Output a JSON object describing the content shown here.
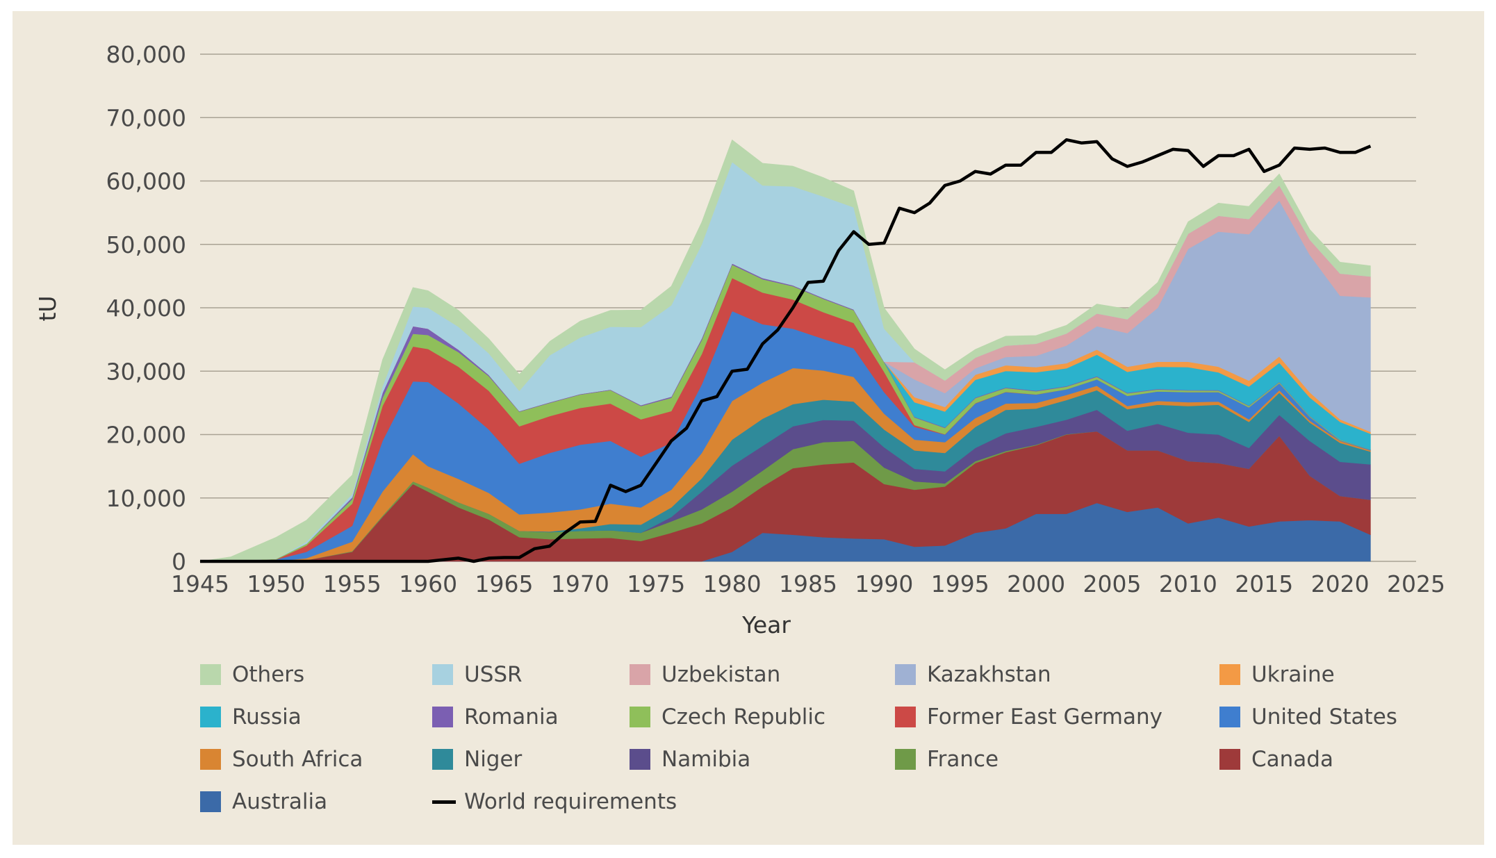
{
  "chart_data": {
    "type": "area",
    "stacked": true,
    "title": "",
    "xlabel": "Year",
    "ylabel": "tU",
    "xlim": [
      1945,
      2025
    ],
    "ylim": [
      0,
      80000
    ],
    "xticks": [
      1945,
      1950,
      1955,
      1960,
      1965,
      1970,
      1975,
      1980,
      1985,
      1990,
      1995,
      2000,
      2005,
      2010,
      2015,
      2020,
      2025
    ],
    "yticks": [
      0,
      10000,
      20000,
      30000,
      40000,
      50000,
      60000,
      70000,
      80000
    ],
    "ytick_labels": [
      "0",
      "10,000",
      "20,000",
      "30,000",
      "40,000",
      "50,000",
      "60,000",
      "70,000",
      "80,000"
    ],
    "grid": true,
    "legend_position": "bottom",
    "x": [
      1945,
      1947,
      1950,
      1952,
      1955,
      1957,
      1959,
      1960,
      1962,
      1964,
      1966,
      1968,
      1970,
      1972,
      1974,
      1976,
      1978,
      1980,
      1982,
      1984,
      1986,
      1988,
      1990,
      1992,
      1994,
      1996,
      1998,
      2000,
      2002,
      2004,
      2006,
      2008,
      2010,
      2012,
      2014,
      2016,
      2018,
      2020,
      2022
    ],
    "series": [
      {
        "name": "Australia",
        "color": "#3b6aa8",
        "values": [
          0,
          0,
          0,
          0,
          0,
          0,
          0,
          0,
          0,
          0,
          0,
          0,
          0,
          0,
          0,
          0,
          0,
          1500,
          4500,
          4200,
          3800,
          3600,
          3500,
          2300,
          2500,
          4500,
          5200,
          7500,
          7500,
          9200,
          7800,
          8500,
          6000,
          6900,
          5500,
          6300,
          6500,
          6300,
          4200
        ]
      },
      {
        "name": "Canada",
        "color": "#9e3a3a",
        "values": [
          0,
          0,
          0,
          200,
          1500,
          7000,
          12200,
          11000,
          8500,
          6600,
          3800,
          3500,
          3600,
          3700,
          3200,
          4500,
          6000,
          7000,
          7300,
          10500,
          11500,
          12000,
          8700,
          9000,
          9300,
          11000,
          12000,
          10800,
          12500,
          11300,
          9700,
          9000,
          9800,
          8600,
          9100,
          13500,
          7000,
          4000,
          5500
        ]
      },
      {
        "name": "France",
        "color": "#6f9a48",
        "values": [
          0,
          0,
          0,
          0,
          100,
          200,
          400,
          600,
          800,
          900,
          1000,
          1100,
          1200,
          1200,
          1300,
          1800,
          2200,
          2500,
          2500,
          3000,
          3500,
          3400,
          2600,
          1300,
          500,
          300,
          200,
          100,
          50,
          0,
          0,
          0,
          0,
          0,
          0,
          0,
          0,
          0,
          0
        ]
      },
      {
        "name": "Namibia",
        "color": "#5b4d8c",
        "values": [
          0,
          0,
          0,
          0,
          0,
          0,
          0,
          0,
          0,
          0,
          0,
          0,
          0,
          0,
          0,
          700,
          2800,
          4100,
          3900,
          3600,
          3500,
          3200,
          3200,
          2000,
          1900,
          2100,
          2800,
          2800,
          2300,
          3400,
          3100,
          4200,
          4500,
          4500,
          3300,
          3300,
          5500,
          5400,
          5600
        ]
      },
      {
        "name": "Niger",
        "color": "#2f8a9a",
        "values": [
          0,
          0,
          0,
          0,
          0,
          0,
          0,
          0,
          0,
          0,
          0,
          100,
          400,
          1000,
          1300,
          1500,
          2100,
          4100,
          4300,
          3500,
          3200,
          3000,
          2800,
          2900,
          2900,
          3300,
          3700,
          2900,
          3100,
          3100,
          3400,
          3000,
          4200,
          4700,
          4100,
          3500,
          2900,
          3000,
          2000
        ]
      },
      {
        "name": "South Africa",
        "color": "#d98532",
        "values": [
          0,
          0,
          0,
          300,
          1500,
          3800,
          4300,
          3400,
          3700,
          3300,
          2600,
          3000,
          3000,
          3200,
          2700,
          2800,
          4000,
          6100,
          5700,
          5700,
          4600,
          3900,
          2500,
          1700,
          1700,
          1400,
          1000,
          900,
          800,
          700,
          500,
          600,
          600,
          500,
          400,
          400,
          300,
          300,
          200
        ]
      },
      {
        "name": "United States",
        "color": "#3f7ecf",
        "values": [
          0,
          100,
          300,
          1000,
          2500,
          8000,
          11500,
          13300,
          11900,
          10000,
          8000,
          9400,
          10200,
          9900,
          8000,
          7400,
          10800,
          14200,
          9200,
          6200,
          5000,
          4500,
          3400,
          2000,
          1200,
          2300,
          1800,
          1300,
          900,
          1000,
          1600,
          1500,
          1600,
          1500,
          1900,
          1100,
          600,
          100,
          100
        ]
      },
      {
        "name": "Former East Germany",
        "color": "#cc4946",
        "values": [
          0,
          0,
          0,
          1000,
          3500,
          5500,
          5500,
          5200,
          5800,
          6100,
          5900,
          5800,
          5800,
          5900,
          5900,
          5000,
          4800,
          5200,
          5000,
          4600,
          4200,
          4000,
          3200,
          300,
          40,
          40,
          30,
          30,
          0,
          0,
          0,
          0,
          0,
          0,
          0,
          0,
          0,
          0,
          0
        ]
      },
      {
        "name": "Czech Republic",
        "color": "#8fbf5a",
        "values": [
          0,
          0,
          100,
          300,
          700,
          1300,
          2000,
          2200,
          2300,
          2300,
          2300,
          2100,
          2100,
          2100,
          2100,
          2100,
          2200,
          2100,
          2100,
          2100,
          2100,
          2000,
          1500,
          1200,
          1000,
          800,
          600,
          500,
          400,
          400,
          400,
          300,
          250,
          230,
          200,
          150,
          100,
          100,
          30
        ]
      },
      {
        "name": "Romania",
        "color": "#7b5fb2",
        "values": [
          0,
          0,
          0,
          0,
          300,
          800,
          1200,
          1000,
          400,
          200,
          100,
          100,
          100,
          100,
          150,
          200,
          300,
          200,
          200,
          150,
          150,
          150,
          100,
          100,
          100,
          100,
          100,
          100,
          100,
          100,
          100,
          100,
          80,
          80,
          80,
          80,
          60,
          0,
          0
        ]
      },
      {
        "name": "Russia",
        "color": "#2bb2cc",
        "values": [
          0,
          0,
          0,
          0,
          0,
          0,
          0,
          0,
          0,
          0,
          0,
          0,
          0,
          0,
          0,
          0,
          0,
          0,
          0,
          0,
          0,
          0,
          0,
          2300,
          2500,
          2800,
          2600,
          2900,
          2800,
          3400,
          3300,
          3500,
          3600,
          2800,
          3000,
          3000,
          2900,
          2800,
          2500
        ]
      },
      {
        "name": "Ukraine",
        "color": "#f39a45",
        "values": [
          0,
          0,
          0,
          0,
          0,
          0,
          0,
          0,
          0,
          0,
          0,
          0,
          0,
          0,
          0,
          0,
          0,
          0,
          0,
          0,
          0,
          0,
          0,
          800,
          700,
          800,
          900,
          800,
          800,
          800,
          800,
          800,
          850,
          900,
          920,
          1000,
          800,
          400,
          300
        ]
      },
      {
        "name": "Kazakhstan",
        "color": "#9fb1d3",
        "values": [
          0,
          0,
          0,
          0,
          0,
          0,
          0,
          0,
          0,
          0,
          0,
          0,
          0,
          0,
          0,
          0,
          0,
          0,
          0,
          0,
          0,
          0,
          0,
          2800,
          2200,
          1000,
          1300,
          1800,
          2800,
          3700,
          5300,
          8500,
          17800,
          21300,
          23100,
          24600,
          21700,
          19500,
          21200
        ]
      },
      {
        "name": "Uzbekistan",
        "color": "#d9a4a8",
        "values": [
          0,
          0,
          0,
          0,
          0,
          0,
          0,
          0,
          0,
          0,
          0,
          0,
          0,
          0,
          0,
          0,
          0,
          0,
          0,
          0,
          0,
          0,
          0,
          2700,
          2000,
          1700,
          1800,
          1900,
          1900,
          2000,
          2200,
          2300,
          2400,
          2500,
          2400,
          2400,
          2400,
          3500,
          3300
        ]
      },
      {
        "name": "USSR",
        "color": "#a7d1e0",
        "values": [
          0,
          0,
          0,
          300,
          500,
          1000,
          3100,
          3300,
          3600,
          3400,
          3200,
          7400,
          8900,
          9900,
          12300,
          14400,
          14800,
          16000,
          14600,
          15600,
          16000,
          16100,
          5200,
          0,
          0,
          0,
          0,
          0,
          0,
          0,
          0,
          0,
          0,
          0,
          0,
          0,
          0,
          0,
          0
        ]
      },
      {
        "name": "Others",
        "color": "#b9d7ac",
        "values": [
          0,
          600,
          3400,
          3400,
          3000,
          4200,
          3000,
          2700,
          2600,
          2300,
          2600,
          2200,
          2600,
          2600,
          2700,
          3000,
          3500,
          3500,
          3500,
          3200,
          3000,
          2600,
          3300,
          2100,
          1700,
          1300,
          1500,
          1300,
          1300,
          1500,
          1600,
          1700,
          1900,
          2000,
          2000,
          1800,
          1600,
          1800,
          1700
        ]
      }
    ],
    "world_requirements": {
      "name": "World requirements",
      "color": "#000000",
      "x": [
        1945,
        1960,
        1962,
        1963,
        1964,
        1965,
        1966,
        1967,
        1968,
        1969,
        1970,
        1971,
        1972,
        1973,
        1974,
        1975,
        1976,
        1977,
        1978,
        1979,
        1980,
        1981,
        1982,
        1983,
        1984,
        1985,
        1986,
        1987,
        1988,
        1989,
        1990,
        1991,
        1992,
        1993,
        1994,
        1995,
        1996,
        1997,
        1998,
        1999,
        2000,
        2001,
        2002,
        2003,
        2004,
        2005,
        2006,
        2007,
        2008,
        2009,
        2010,
        2011,
        2012,
        2013,
        2014,
        2015,
        2016,
        2017,
        2018,
        2019,
        2020,
        2021,
        2022
      ],
      "values": [
        0,
        0,
        500,
        0,
        500,
        600,
        600,
        2000,
        2400,
        4500,
        6200,
        6300,
        12000,
        11000,
        12000,
        15500,
        19000,
        21000,
        25300,
        26000,
        30000,
        30300,
        34300,
        36500,
        40000,
        44000,
        44200,
        49000,
        52000,
        50000,
        50200,
        55700,
        55000,
        56500,
        59300,
        60000,
        61500,
        61100,
        62500,
        62500,
        64500,
        64500,
        66500,
        66000,
        66200,
        63500,
        62300,
        63000,
        64000,
        65000,
        64800,
        62300,
        64000,
        64000,
        65000,
        61500,
        62500,
        65200,
        65000,
        65200,
        64500,
        64500,
        65500
      ]
    }
  },
  "legend": {
    "order": [
      "Others",
      "USSR",
      "Uzbekistan",
      "Kazakhstan",
      "Ukraine",
      "Russia",
      "Romania",
      "Czech Republic",
      "Former East Germany",
      "United States",
      "South Africa",
      "Niger",
      "Namibia",
      "France",
      "Canada",
      "Australia",
      "World requirements"
    ]
  }
}
